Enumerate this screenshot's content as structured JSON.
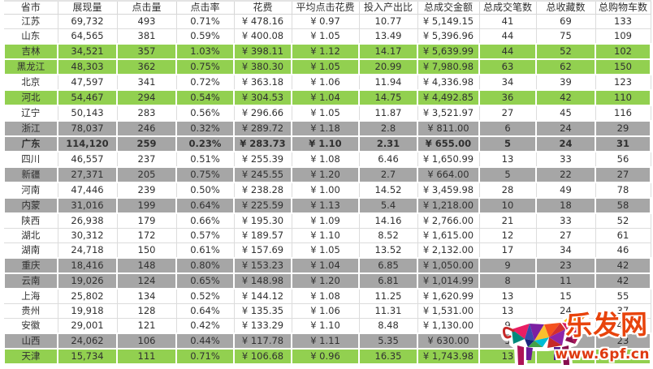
{
  "table": {
    "columns": [
      "省市",
      "展现量",
      "点击量",
      "点击率",
      "花费",
      "平均点击花费",
      "投入产出比",
      "总成交金额",
      "总成交笔数",
      "总收藏数",
      "总购物车数"
    ],
    "rows": [
      {
        "style": "white",
        "bold": false,
        "cells": [
          "江苏",
          "69,732",
          "493",
          "0.71%",
          "¥ 478.16",
          "¥ 0.97",
          "10.77",
          "¥ 5,149.15",
          "41",
          "69",
          "133"
        ]
      },
      {
        "style": "white",
        "bold": false,
        "cells": [
          "山东",
          "64,565",
          "381",
          "0.59%",
          "¥ 400.08",
          "¥ 1.05",
          "13.49",
          "¥ 5,396.96",
          "44",
          "75",
          "109"
        ]
      },
      {
        "style": "green",
        "bold": false,
        "cells": [
          "吉林",
          "34,521",
          "357",
          "1.03%",
          "¥ 398.11",
          "¥ 1.12",
          "14.17",
          "¥ 5,639.99",
          "44",
          "52",
          "102"
        ]
      },
      {
        "style": "green",
        "bold": false,
        "cells": [
          "黑龙江",
          "48,303",
          "362",
          "0.75%",
          "¥ 380.30",
          "¥ 1.05",
          "20.99",
          "¥ 7,980.98",
          "63",
          "62",
          "150"
        ]
      },
      {
        "style": "white",
        "bold": false,
        "cells": [
          "北京",
          "47,597",
          "341",
          "0.72%",
          "¥ 363.18",
          "¥ 1.06",
          "11.94",
          "¥ 4,336.98",
          "34",
          "39",
          "123"
        ]
      },
      {
        "style": "green",
        "bold": false,
        "cells": [
          "河北",
          "54,467",
          "294",
          "0.54%",
          "¥ 304.53",
          "¥ 1.04",
          "14.75",
          "¥ 4,492.85",
          "36",
          "42",
          "110"
        ]
      },
      {
        "style": "white",
        "bold": false,
        "cells": [
          "辽宁",
          "50,143",
          "283",
          "0.56%",
          "¥ 296.66",
          "¥ 1.05",
          "11.87",
          "¥ 3,521.97",
          "27",
          "45",
          "116"
        ]
      },
      {
        "style": "gray",
        "bold": false,
        "cells": [
          "浙江",
          "78,037",
          "246",
          "0.32%",
          "¥ 289.72",
          "¥ 1.18",
          "2.8",
          "¥ 811.00",
          "6",
          "24",
          "29"
        ]
      },
      {
        "style": "gray",
        "bold": true,
        "cells": [
          "广东",
          "114,120",
          "259",
          "0.23%",
          "¥ 283.73",
          "¥ 1.10",
          "2.31",
          "¥ 655.00",
          "5",
          "24",
          "31"
        ]
      },
      {
        "style": "white",
        "bold": false,
        "cells": [
          "四川",
          "46,557",
          "237",
          "0.51%",
          "¥ 255.39",
          "¥ 1.08",
          "6.46",
          "¥ 1,650.99",
          "13",
          "33",
          "56"
        ]
      },
      {
        "style": "gray",
        "bold": false,
        "cells": [
          "新疆",
          "27,371",
          "205",
          "0.75%",
          "¥ 245.55",
          "¥ 1.20",
          "2.7",
          "¥ 664.00",
          "5",
          "22",
          "27"
        ]
      },
      {
        "style": "white",
        "bold": false,
        "cells": [
          "河南",
          "47,446",
          "239",
          "0.50%",
          "¥ 238.28",
          "¥ 1.00",
          "14.52",
          "¥ 3,459.98",
          "28",
          "49",
          "78"
        ]
      },
      {
        "style": "gray",
        "bold": false,
        "cells": [
          "内蒙",
          "31,016",
          "199",
          "0.64%",
          "¥ 225.59",
          "¥ 1.13",
          "5.4",
          "¥ 1,218.00",
          "10",
          "18",
          "58"
        ]
      },
      {
        "style": "white",
        "bold": false,
        "cells": [
          "陕西",
          "26,938",
          "179",
          "0.66%",
          "¥ 195.30",
          "¥ 1.09",
          "14.16",
          "¥ 2,766.00",
          "21",
          "33",
          "52"
        ]
      },
      {
        "style": "white",
        "bold": false,
        "cells": [
          "湖北",
          "30,312",
          "172",
          "0.57%",
          "¥ 189.57",
          "¥ 1.10",
          "8.52",
          "¥ 1,615.00",
          "12",
          "27",
          "61"
        ]
      },
      {
        "style": "white",
        "bold": false,
        "cells": [
          "湖南",
          "24,718",
          "150",
          "0.61%",
          "¥ 157.69",
          "¥ 1.05",
          "13.52",
          "¥ 2,132.00",
          "17",
          "34",
          "46"
        ]
      },
      {
        "style": "gray",
        "bold": false,
        "cells": [
          "重庆",
          "18,416",
          "148",
          "0.80%",
          "¥ 153.23",
          "¥ 1.04",
          "6.85",
          "¥ 1,050.00",
          "9",
          "23",
          "42"
        ]
      },
      {
        "style": "gray",
        "bold": false,
        "cells": [
          "云南",
          "19,026",
          "124",
          "0.65%",
          "¥ 148.98",
          "¥ 1.20",
          "6.81",
          "¥ 1,014.99",
          "8",
          "11",
          "42"
        ]
      },
      {
        "style": "white",
        "bold": false,
        "cells": [
          "上海",
          "25,802",
          "134",
          "0.52%",
          "¥ 144.12",
          "¥ 1.08",
          "11.25",
          "¥ 1,620.99",
          "13",
          "15",
          "55"
        ]
      },
      {
        "style": "white",
        "bold": false,
        "cells": [
          "贵州",
          "19,918",
          "128",
          "0.64%",
          "¥ 135.35",
          "¥ 1.06",
          "11.31",
          "¥ 1,531.00",
          "13",
          "24",
          "37"
        ]
      },
      {
        "style": "white",
        "bold": false,
        "cells": [
          "安徽",
          "29,001",
          "121",
          "0.42%",
          "¥ 133.29",
          "¥ 1.10",
          "8.48",
          "¥ 1,130.00",
          "9",
          "13",
          "41"
        ]
      },
      {
        "style": "gray",
        "bold": false,
        "cells": [
          "山西",
          "24,062",
          "106",
          "0.44%",
          "¥ 117.78",
          "¥ 1.11",
          "5.35",
          "¥ 630.00",
          "5",
          "11",
          "23"
        ]
      },
      {
        "style": "green",
        "bold": false,
        "cells": [
          "天津",
          "15,734",
          "111",
          "0.71%",
          "¥ 106.68",
          "¥ 0.96",
          "16.35",
          "¥ 1,743.98",
          "13",
          "11",
          "24"
        ]
      }
    ]
  },
  "watermark": {
    "brand": "乐发网",
    "url": "www.6pf.cn"
  },
  "colors": {
    "row_green": "#92d050",
    "row_gray": "#a6a6a6",
    "gridline": "#dcdcdc",
    "text": "#303030",
    "watermark_red": "#e8430c"
  }
}
